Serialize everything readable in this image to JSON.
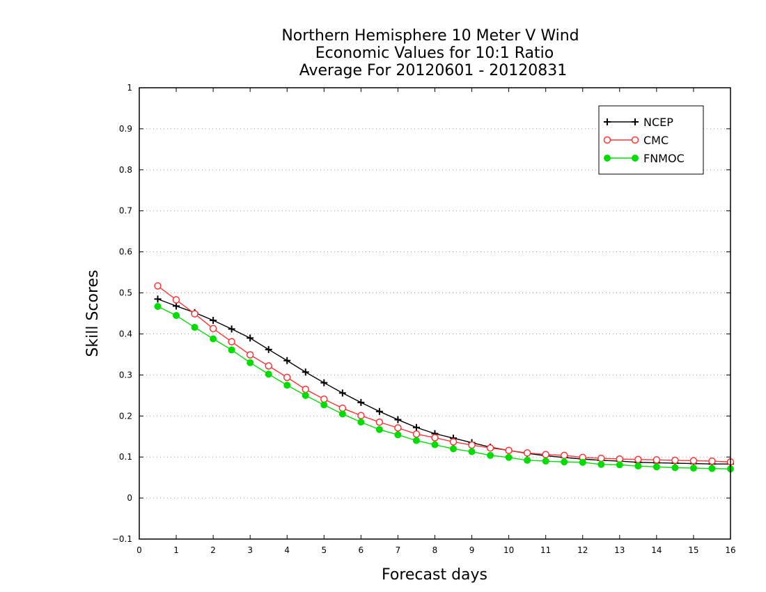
{
  "chart_data": {
    "type": "line",
    "title_lines": [
      "Northern Hemisphere 10 Meter V Wind",
      "Economic Values for 10:1 Ratio",
      "Average For 20120601 - 20120831"
    ],
    "xlabel": "Forecast days",
    "ylabel": "Skill Scores",
    "xlim": [
      0,
      16
    ],
    "ylim": [
      -0.1,
      1
    ],
    "xticks": [
      "0",
      "1",
      "2",
      "3",
      "4",
      "5",
      "6",
      "7",
      "8",
      "9",
      "10",
      "11",
      "12",
      "13",
      "14",
      "15",
      "16"
    ],
    "yticks": [
      "−0.1",
      "0",
      "0.1",
      "0.2",
      "0.3",
      "0.4",
      "0.5",
      "0.6",
      "0.7",
      "0.8",
      "0.9",
      "1"
    ],
    "grid": true,
    "legend_position": "top-right",
    "x": [
      0.5,
      1,
      1.5,
      2,
      2.5,
      3,
      3.5,
      4,
      4.5,
      5,
      5.5,
      6,
      6.5,
      7,
      7.5,
      8,
      8.5,
      9,
      9.5,
      10,
      10.5,
      11,
      11.5,
      12,
      12.5,
      13,
      13.5,
      14,
      14.5,
      15,
      15.5,
      16
    ],
    "series": [
      {
        "name": "NCEP",
        "color": "#000000",
        "marker": "plus",
        "values": [
          0.485,
          0.468,
          0.452,
          0.433,
          0.412,
          0.39,
          0.362,
          0.335,
          0.307,
          0.281,
          0.256,
          0.233,
          0.211,
          0.191,
          0.172,
          0.157,
          0.146,
          0.135,
          0.124,
          0.116,
          0.109,
          0.103,
          0.099,
          0.095,
          0.092,
          0.09,
          0.087,
          0.086,
          0.085,
          0.084,
          0.083,
          0.083
        ]
      },
      {
        "name": "CMC",
        "color": "#ff3333",
        "marker": "open-circle",
        "values": [
          0.517,
          0.483,
          0.449,
          0.413,
          0.381,
          0.349,
          0.322,
          0.294,
          0.265,
          0.241,
          0.219,
          0.201,
          0.185,
          0.171,
          0.156,
          0.147,
          0.137,
          0.129,
          0.122,
          0.116,
          0.11,
          0.106,
          0.104,
          0.099,
          0.097,
          0.095,
          0.094,
          0.093,
          0.092,
          0.091,
          0.09,
          0.088
        ]
      },
      {
        "name": "FNMOC",
        "color": "#00dd00",
        "marker": "filled-circle",
        "values": [
          0.467,
          0.445,
          0.416,
          0.388,
          0.361,
          0.33,
          0.302,
          0.275,
          0.25,
          0.227,
          0.205,
          0.185,
          0.167,
          0.154,
          0.14,
          0.13,
          0.12,
          0.113,
          0.104,
          0.099,
          0.092,
          0.09,
          0.088,
          0.087,
          0.082,
          0.081,
          0.078,
          0.076,
          0.074,
          0.073,
          0.072,
          0.071
        ]
      }
    ]
  }
}
